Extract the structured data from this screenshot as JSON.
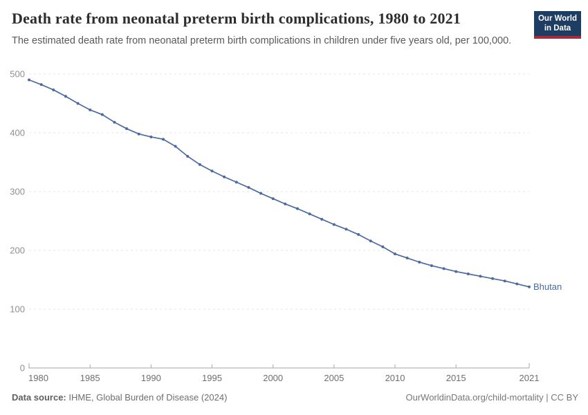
{
  "header": {
    "title": "Death rate from neonatal preterm birth complications, 1980 to 2021",
    "subtitle": "The estimated death rate from neonatal preterm birth complications in children under five years old, per 100,000.",
    "logo": {
      "line1": "Our World",
      "line2": "in Data"
    }
  },
  "chart_data": {
    "type": "line",
    "title": "Death rate from neonatal preterm birth complications, 1980 to 2021",
    "xlabel": "",
    "ylabel": "",
    "ylim": [
      0,
      500
    ],
    "yticks": [
      0,
      100,
      200,
      300,
      400,
      500
    ],
    "xticks": [
      1980,
      1985,
      1990,
      1995,
      2000,
      2005,
      2010,
      2015,
      2021
    ],
    "grid": "horizontal-dashed",
    "legend_position": "end-of-line-label",
    "line_color": "#4c6a9c",
    "end_label": "Bhutan",
    "series": [
      {
        "name": "Bhutan",
        "x": [
          1980,
          1981,
          1982,
          1983,
          1984,
          1985,
          1986,
          1987,
          1988,
          1989,
          1990,
          1991,
          1992,
          1993,
          1994,
          1995,
          1996,
          1997,
          1998,
          1999,
          2000,
          2001,
          2002,
          2003,
          2004,
          2005,
          2006,
          2007,
          2008,
          2009,
          2010,
          2011,
          2012,
          2013,
          2014,
          2015,
          2016,
          2017,
          2018,
          2019,
          2020,
          2021
        ],
        "values": [
          490,
          482,
          473,
          462,
          450,
          439,
          431,
          418,
          407,
          398,
          393,
          389,
          377,
          360,
          346,
          335,
          325,
          316,
          307,
          297,
          288,
          279,
          271,
          262,
          253,
          244,
          236,
          227,
          216,
          206,
          194,
          187,
          180,
          174,
          169,
          164,
          160,
          156,
          152,
          148,
          143,
          138
        ]
      }
    ]
  },
  "footer": {
    "source_label": "Data source:",
    "source_text": " IHME, Global Burden of Disease (2024)",
    "credit": "OurWorldinData.org/child-mortality | CC BY"
  },
  "colors": {
    "line": "#4c6a9c",
    "logo_navy": "#1d3d63",
    "logo_red": "#a62b3d",
    "gridline": "#e4e4e4",
    "axis": "#a6a6a6"
  }
}
